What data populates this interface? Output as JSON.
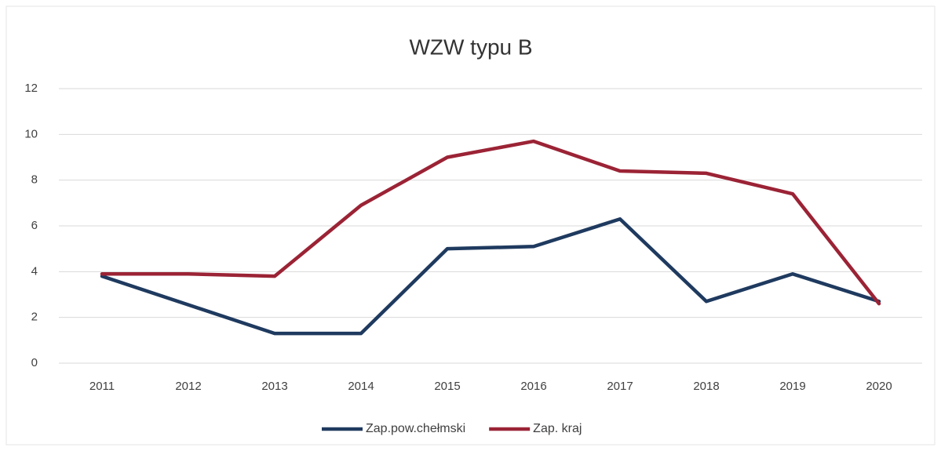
{
  "chart_data": {
    "type": "line",
    "title": "WZW typu B",
    "categories": [
      "2011",
      "2012",
      "2013",
      "2014",
      "2015",
      "2016",
      "2017",
      "2018",
      "2019",
      "2020"
    ],
    "series": [
      {
        "name": "Zap.pow.chełmski",
        "color": "#1f3a5f",
        "values": [
          3.8,
          2.55,
          1.3,
          1.3,
          5.0,
          5.1,
          6.3,
          2.7,
          3.9,
          2.7
        ]
      },
      {
        "name": "Zap. kraj",
        "color": "#9b2335",
        "values": [
          3.9,
          3.9,
          3.8,
          6.9,
          9.0,
          9.7,
          8.4,
          8.3,
          7.4,
          2.6
        ]
      }
    ],
    "ylim": [
      0,
      12
    ],
    "yticks": [
      0,
      2,
      4,
      6,
      8,
      10,
      12
    ],
    "grid": true,
    "legend": "bottom"
  }
}
